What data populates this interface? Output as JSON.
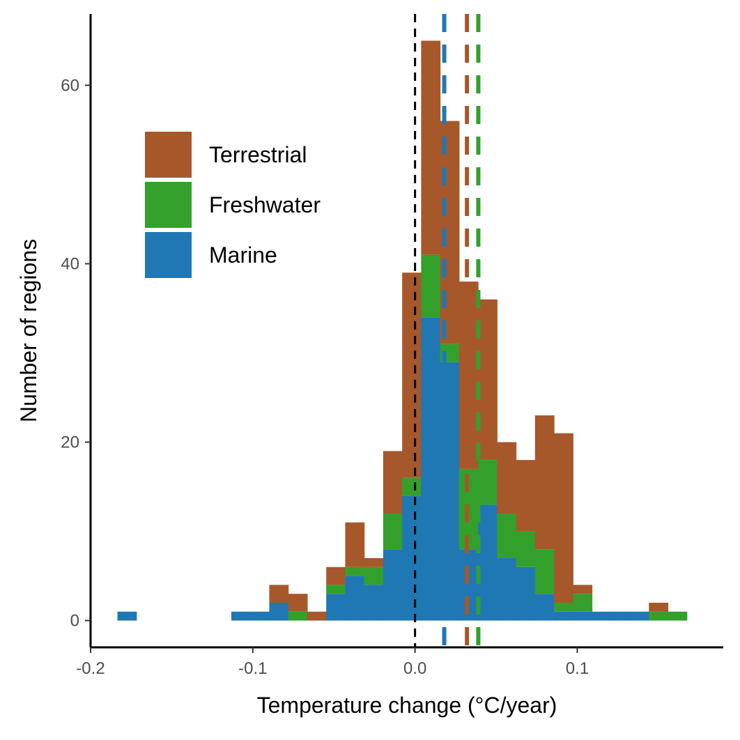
{
  "chart_data": {
    "type": "bar",
    "stacked": true,
    "title": "",
    "xlabel": "Temperature change (°C/year)",
    "ylabel": "Number of regions",
    "xlim": [
      -0.2,
      0.19
    ],
    "ylim": [
      -3,
      68
    ],
    "bin_width": 0.0117,
    "x_ticks": [
      -0.2,
      -0.1,
      0.0,
      0.1
    ],
    "x_tick_labels": [
      "-0.2",
      "-0.1",
      "0.0",
      "0.1"
    ],
    "y_ticks": [
      0,
      20,
      40,
      60
    ],
    "y_tick_labels": [
      "0",
      "20",
      "40",
      "60"
    ],
    "grid": false,
    "legend_position": "top-left",
    "bin_centers": [
      -0.1776,
      -0.1659,
      -0.1542,
      -0.1425,
      -0.1308,
      -0.1191,
      -0.1074,
      -0.0957,
      -0.084,
      -0.0723,
      -0.0606,
      -0.0489,
      -0.0372,
      -0.0255,
      -0.0138,
      -0.0021,
      0.0096,
      0.0213,
      0.033,
      0.0447,
      0.0564,
      0.0681,
      0.0798,
      0.0915,
      0.1032,
      0.1149,
      0.1266,
      0.1383,
      0.15,
      0.1617
    ],
    "series": [
      {
        "name": "Marine",
        "color": "#1f78b4",
        "values": [
          1,
          0,
          0,
          0,
          0,
          0,
          1,
          1,
          2,
          0,
          0,
          3,
          5,
          4,
          8,
          14,
          34,
          29,
          8,
          13,
          7,
          6,
          3,
          1,
          1,
          1,
          1,
          1,
          0,
          0
        ]
      },
      {
        "name": "Freshwater",
        "color": "#33a02c",
        "values": [
          0,
          0,
          0,
          0,
          0,
          0,
          0,
          0,
          0,
          1,
          0,
          1,
          1,
          2,
          4,
          2,
          7,
          2,
          9,
          5,
          5,
          4,
          5,
          1,
          2,
          0,
          0,
          0,
          1,
          1
        ]
      },
      {
        "name": "Terrestrial",
        "color": "#a6582a",
        "values": [
          0,
          0,
          0,
          0,
          0,
          0,
          0,
          0,
          2,
          2,
          1,
          2,
          5,
          1,
          7,
          23,
          24,
          25,
          21,
          18,
          8,
          8,
          15,
          19,
          1,
          0,
          0,
          0,
          1,
          0
        ]
      }
    ],
    "reference_lines": [
      {
        "x": 0.0,
        "color": "#000000",
        "style": "dashed"
      },
      {
        "x": 0.018,
        "color": "#1f78b4",
        "style": "dashed"
      },
      {
        "x": 0.032,
        "color": "#a6582a",
        "style": "dashed"
      },
      {
        "x": 0.039,
        "color": "#33a02c",
        "style": "dashed"
      }
    ],
    "legend_order": [
      "Terrestrial",
      "Freshwater",
      "Marine"
    ]
  }
}
